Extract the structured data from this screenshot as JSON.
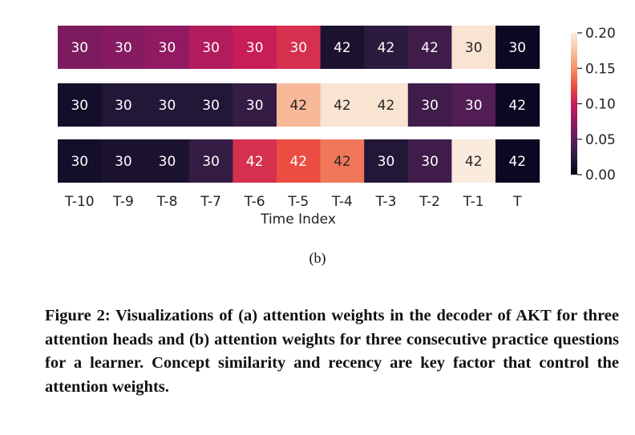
{
  "chart_data": {
    "type": "heatmap",
    "xlabel": "Time Index",
    "x_ticks": [
      "T-10",
      "T-9",
      "T-8",
      "T-7",
      "T-6",
      "T-5",
      "T-4",
      "T-3",
      "T-2",
      "T-1",
      "T"
    ],
    "rows": [
      {
        "annotations": [
          "30",
          "30",
          "30",
          "30",
          "30",
          "30",
          "42",
          "42",
          "42",
          "30",
          "30"
        ],
        "values": [
          0.065,
          0.07,
          0.075,
          0.09,
          0.1,
          0.11,
          0.015,
          0.025,
          0.035,
          0.195,
          0.005
        ]
      },
      {
        "annotations": [
          "30",
          "30",
          "30",
          "30",
          "30",
          "42",
          "42",
          "42",
          "30",
          "30",
          "42"
        ],
        "values": [
          0.01,
          0.02,
          0.02,
          0.02,
          0.03,
          0.17,
          0.195,
          0.195,
          0.035,
          0.045,
          0.005
        ]
      },
      {
        "annotations": [
          "30",
          "30",
          "30",
          "30",
          "42",
          "42",
          "42",
          "30",
          "30",
          "42",
          "42"
        ],
        "values": [
          0.01,
          0.015,
          0.015,
          0.03,
          0.11,
          0.125,
          0.14,
          0.02,
          0.035,
          0.2,
          0.005
        ]
      }
    ],
    "colorbar": {
      "ticks": [
        "0.00",
        "0.05",
        "0.10",
        "0.15",
        "0.20"
      ],
      "range": [
        0,
        0.2
      ]
    },
    "colormap": [
      "#03051a",
      "#2b1b3f",
      "#5c1e5a",
      "#911a63",
      "#c81d57",
      "#ec4d42",
      "#f5936a",
      "#f7c3a3",
      "#faebdd"
    ]
  },
  "subcaption": "(b)",
  "caption": "Figure 2: Visualizations of (a) attention weights in the decoder of AKT for three attention heads and (b) attention weights for three consecutive practice questions for a learner. Concept similarity and recency are key factor that control the attention weights."
}
